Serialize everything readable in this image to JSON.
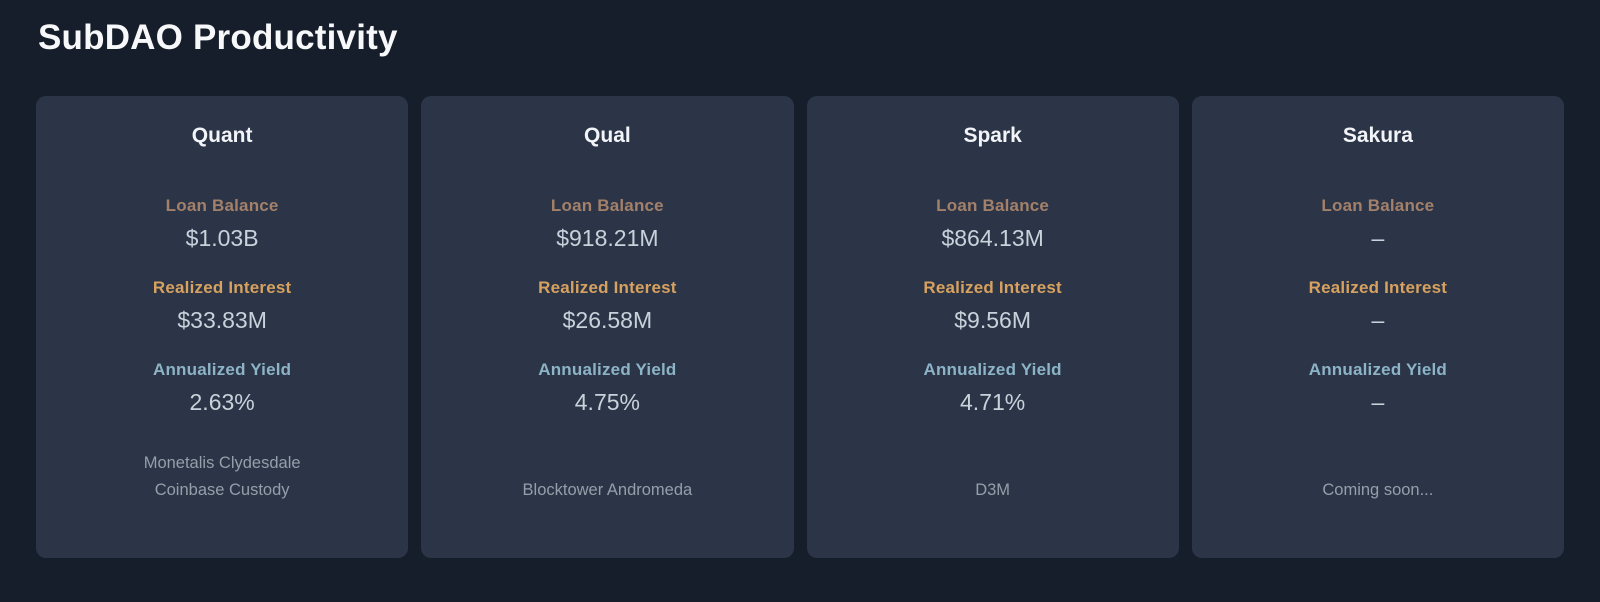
{
  "page": {
    "title": "SubDAO Productivity"
  },
  "labels": {
    "loan_balance": "Loan Balance",
    "realized_interest": "Realized Interest",
    "annualized_yield": "Annualized Yield"
  },
  "colors": {
    "background": "#171e2b",
    "card_background": "#2b3547",
    "title_text": "#f7f8fa",
    "loan_balance_label": "#a3806a",
    "realized_interest_label": "#d7a15f",
    "annualized_yield_label": "#8db3c7",
    "value_text": "#c9d1db",
    "footer_text": "#959ea9"
  },
  "cards": [
    {
      "title": "Quant",
      "loan_balance": "$1.03B",
      "realized_interest": "$33.83M",
      "annualized_yield": "2.63%",
      "footer_lines": [
        "Monetalis Clydesdale",
        "Coinbase Custody"
      ]
    },
    {
      "title": "Qual",
      "loan_balance": "$918.21M",
      "realized_interest": "$26.58M",
      "annualized_yield": "4.75%",
      "footer_lines": [
        "Blocktower Andromeda"
      ]
    },
    {
      "title": "Spark",
      "loan_balance": "$864.13M",
      "realized_interest": "$9.56M",
      "annualized_yield": "4.71%",
      "footer_lines": [
        "D3M"
      ]
    },
    {
      "title": "Sakura",
      "loan_balance": "–",
      "realized_interest": "–",
      "annualized_yield": "–",
      "footer_lines": [
        "Coming soon..."
      ]
    }
  ]
}
